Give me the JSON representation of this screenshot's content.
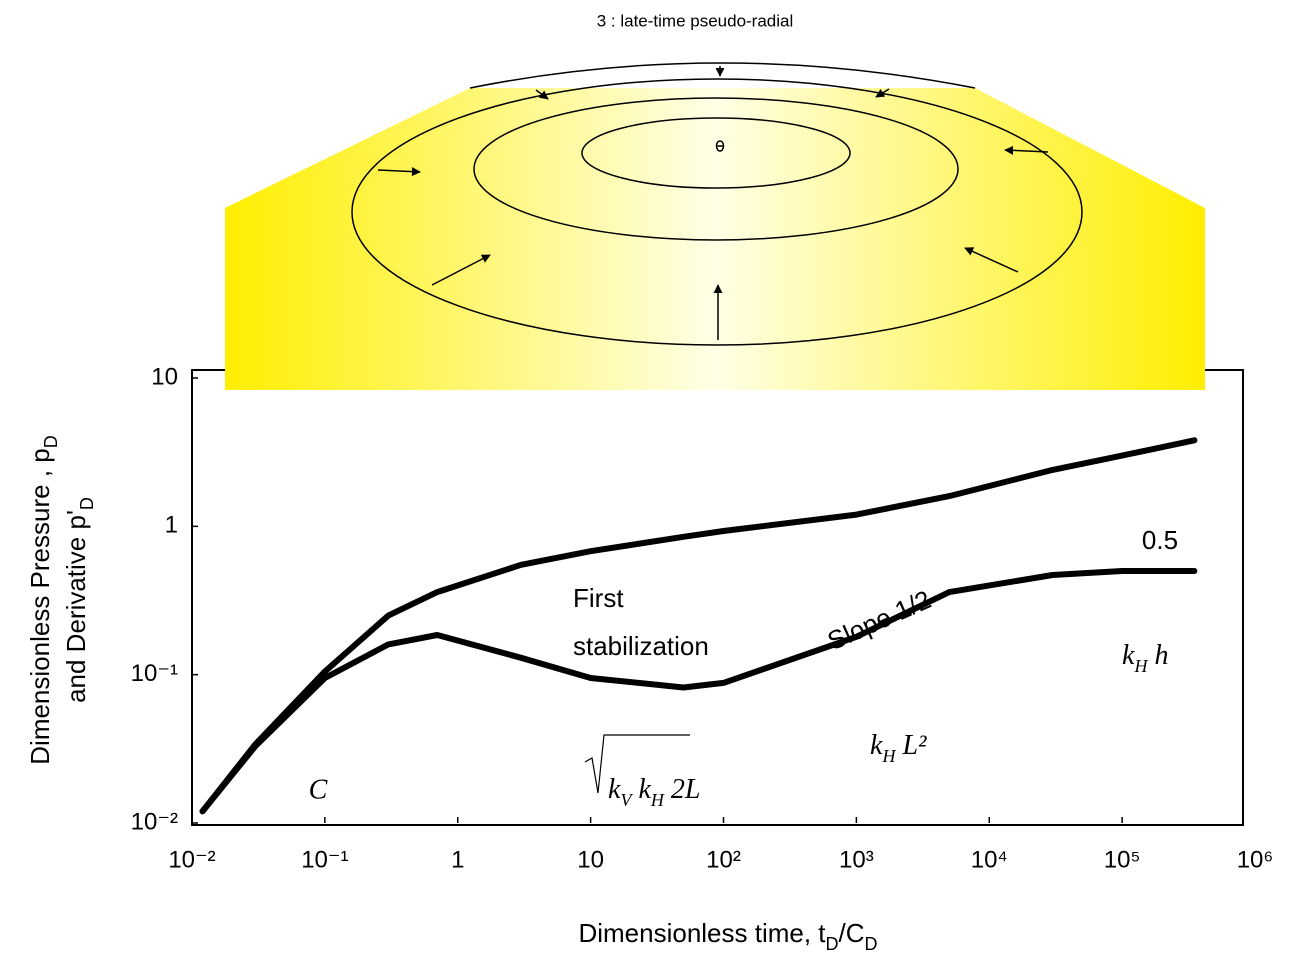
{
  "chart_data": {
    "type": "line",
    "diagram_title": "3 : late-time pseudo-radial",
    "x_label": [
      "Dimensionless time, t",
      "D",
      "/C",
      "D"
    ],
    "y_label": [
      [
        "Dimensionless Pressure , p",
        "D"
      ],
      [
        "and Derivative p'",
        "D"
      ]
    ],
    "log_x": true,
    "log_y": true,
    "xlim": [
      0.01,
      1000000
    ],
    "ylim": [
      0.01,
      10
    ],
    "xticks": [
      {
        "value": 0.01,
        "label": "10⁻²"
      },
      {
        "value": 0.1,
        "label": "10⁻¹"
      },
      1,
      10,
      {
        "value": 100,
        "label": "10²"
      },
      {
        "value": 1000,
        "label": "10³"
      },
      {
        "value": 10000,
        "label": "10⁴"
      },
      {
        "value": 100000,
        "label": "10⁵"
      },
      {
        "value": 1000000,
        "label": "10⁶"
      }
    ],
    "yticks": [
      {
        "value": 0.01,
        "label": "10⁻²"
      },
      {
        "value": 0.1,
        "label": "10⁻¹"
      },
      1,
      10
    ],
    "x": [
      0.012,
      0.03,
      0.1,
      0.3,
      0.7,
      3,
      10,
      50,
      100,
      1000,
      5000,
      30000,
      100000,
      350000
    ],
    "series": [
      {
        "color": "#000000",
        "values": [
          0.012,
          0.034,
          0.105,
          0.25,
          0.36,
          0.55,
          0.68,
          0.85,
          0.93,
          1.2,
          1.6,
          2.4,
          3.0,
          3.8
        ]
      },
      {
        "color": "#000000",
        "values": [
          0.012,
          0.033,
          0.095,
          0.16,
          0.185,
          0.13,
          0.095,
          0.082,
          0.088,
          0.18,
          0.36,
          0.47,
          0.5,
          0.5
        ]
      }
    ],
    "annotations": [
      "First",
      "stabilization",
      "Slope 1/2",
      "0.5",
      "C"
    ],
    "formulas": [
      [
        "k",
        "V",
        " k",
        "H",
        " 2L"
      ],
      [
        "k",
        "H",
        " L²"
      ],
      [
        "k",
        "H",
        " h"
      ]
    ]
  }
}
